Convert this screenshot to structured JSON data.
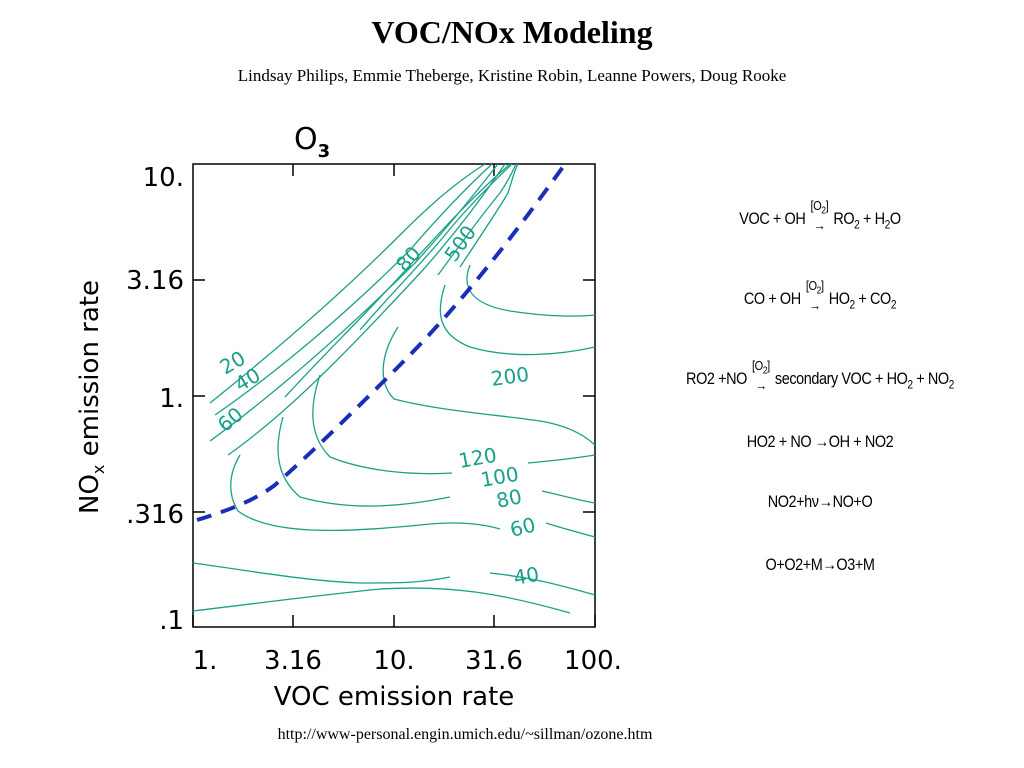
{
  "header": {
    "title": "VOC/NOx Modeling",
    "authors": "Lindsay Philips, Emmie Theberge, Kristine Robin, Leanne Powers, Doug Rooke"
  },
  "plot": {
    "species": "O",
    "species_sub": "3",
    "x_axis_label": "VOC emission rate",
    "y_axis_label": "NO",
    "y_axis_label_sub": "x",
    "y_axis_label_rest": " emission rate",
    "x_ticks": [
      "1.",
      "3.16",
      "10.",
      "31.6",
      "100."
    ],
    "y_ticks": [
      "10.",
      "3.16",
      "1.",
      ".316",
      ".1"
    ],
    "contour_labels": [
      "20",
      "40",
      "60",
      "80",
      "500",
      "200",
      "120",
      "100",
      "80",
      "60",
      "40"
    ],
    "colors": {
      "contour": "#1aa08a",
      "ridge_line": "#1a2fb8"
    }
  },
  "equations": [
    {
      "lhs": "VOC + OH",
      "catalyst": "[O",
      "catalyst_sub": "2",
      "catalyst_end": "]",
      "rhs_parts": [
        "RO",
        "2",
        " + H",
        "2",
        "O"
      ]
    },
    {
      "lhs": "CO + OH",
      "catalyst": "[O",
      "catalyst_sub": "2",
      "catalyst_end": "]",
      "rhs_parts": [
        "HO",
        "2",
        " + CO",
        "2",
        ""
      ]
    },
    {
      "lhs": "RO2 +NO",
      "catalyst": "[O",
      "catalyst_sub": "2",
      "catalyst_end": "]",
      "rhs_parts": [
        "secondary VOC + HO",
        "2",
        " + NO",
        "2",
        ""
      ]
    },
    {
      "text": "HO2 + NO →OH + NO2"
    },
    {
      "text": "NO2+hν→NO+O"
    },
    {
      "text": "O+O2+M→O3+M"
    }
  ],
  "footer": {
    "url": "http://www-personal.engin.umich.edu/~sillman/ozone.htm"
  }
}
